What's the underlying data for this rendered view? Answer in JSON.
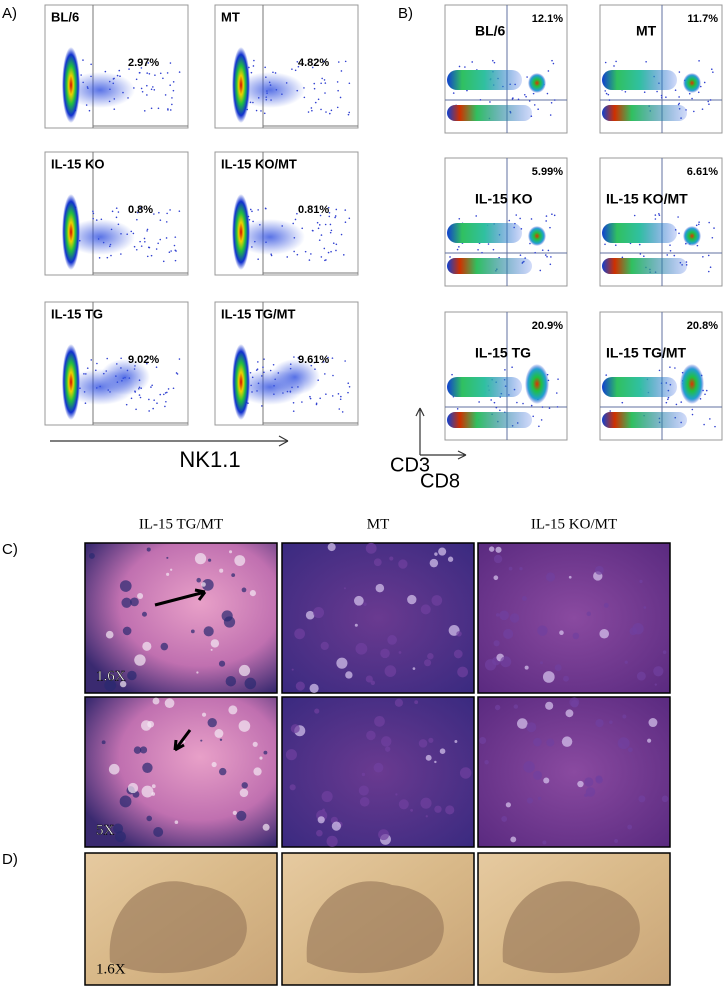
{
  "panel_a": {
    "label": "A)",
    "x_axis": "NK1.1",
    "plots": [
      {
        "name": "BL/6",
        "percent": "2.97%"
      },
      {
        "name": "MT",
        "percent": "4.82%"
      },
      {
        "name": "IL-15 KO",
        "percent": "0.8%"
      },
      {
        "name": "IL-15 KO/MT",
        "percent": "0.81%"
      },
      {
        "name": "IL-15 TG",
        "percent": "9.02%"
      },
      {
        "name": "IL-15 TG/MT",
        "percent": "9.61%"
      }
    ]
  },
  "panel_b": {
    "label": "B)",
    "y_axis": "CD3",
    "x_axis": "CD8",
    "plots": [
      {
        "name": "BL/6",
        "percent": "12.1%"
      },
      {
        "name": "MT",
        "percent": "11.7%"
      },
      {
        "name": "IL-15 KO",
        "percent": "5.99%"
      },
      {
        "name": "IL-15 KO/MT",
        "percent": "6.61%"
      },
      {
        "name": "IL-15 TG",
        "percent": "20.9%"
      },
      {
        "name": "IL-15 TG/MT",
        "percent": "20.8%"
      }
    ]
  },
  "panel_c": {
    "label": "C)",
    "columns": [
      "IL-15 TG/MT",
      "MT",
      "IL-15 KO/MT"
    ],
    "magnifications": [
      "1.6X",
      "5X"
    ]
  },
  "panel_d": {
    "label": "D)",
    "magnification": "1.6X"
  }
}
